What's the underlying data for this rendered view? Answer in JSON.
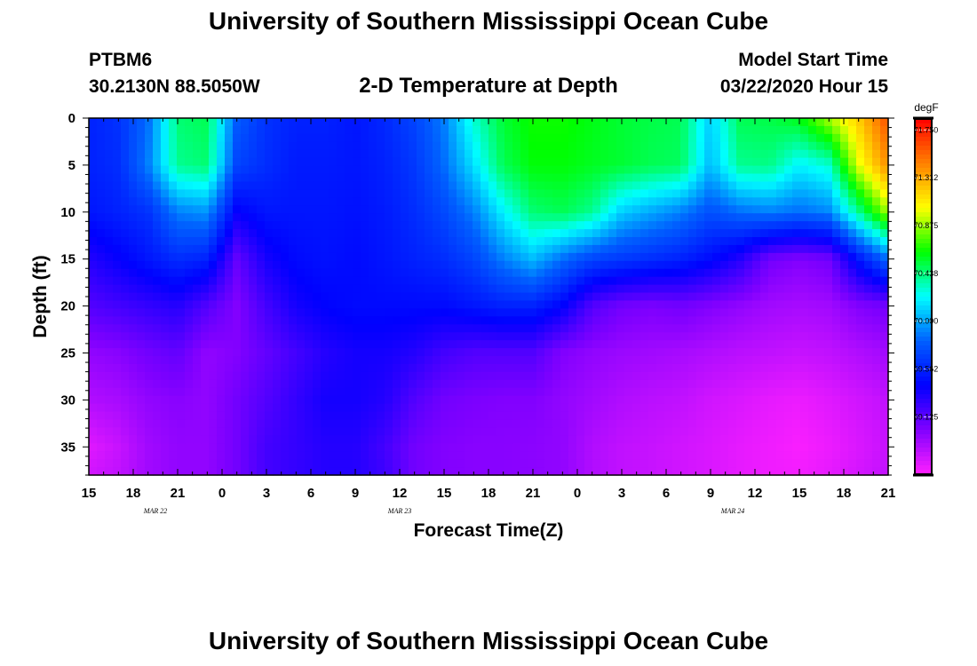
{
  "header": {
    "title": "University of Southern Mississippi Ocean Cube",
    "station_id": "PTBM6",
    "coordinates": "30.2130N 88.5050W",
    "chart_title": "2-D Temperature at Depth",
    "model_start_label": "Model Start Time",
    "model_start_value": "03/22/2020 Hour 15"
  },
  "footer": {
    "title": "University of Southern Mississippi Ocean Cube"
  },
  "chart_data": {
    "type": "heatmap",
    "title": "2-D Temperature at Depth",
    "xlabel": "Forecast Time(Z)",
    "ylabel": "Depth (ft)",
    "x_unit": "hours since 03/22/2020 15Z",
    "xlim": [
      0,
      54
    ],
    "ylim": [
      0,
      38
    ],
    "y_inverted": true,
    "x_ticks": [
      {
        "x": 0,
        "label": "15"
      },
      {
        "x": 3,
        "label": "18"
      },
      {
        "x": 6,
        "label": "21"
      },
      {
        "x": 9,
        "label": "0"
      },
      {
        "x": 12,
        "label": "3"
      },
      {
        "x": 15,
        "label": "6"
      },
      {
        "x": 18,
        "label": "9"
      },
      {
        "x": 21,
        "label": "12"
      },
      {
        "x": 24,
        "label": "15"
      },
      {
        "x": 27,
        "label": "18"
      },
      {
        "x": 30,
        "label": "21"
      },
      {
        "x": 33,
        "label": "0"
      },
      {
        "x": 36,
        "label": "3"
      },
      {
        "x": 39,
        "label": "6"
      },
      {
        "x": 42,
        "label": "9"
      },
      {
        "x": 45,
        "label": "12"
      },
      {
        "x": 48,
        "label": "15"
      },
      {
        "x": 51,
        "label": "18"
      },
      {
        "x": 54,
        "label": "21"
      }
    ],
    "date_labels": [
      {
        "x": 4.5,
        "label": "MAR 22"
      },
      {
        "x": 21,
        "label": "MAR 23"
      },
      {
        "x": 43.5,
        "label": "MAR 24"
      }
    ],
    "y_ticks": [
      0,
      5,
      10,
      15,
      20,
      25,
      30,
      35
    ],
    "depths": [
      0,
      5,
      10,
      15,
      20,
      25,
      30,
      35,
      38
    ],
    "times": [
      0,
      2,
      4,
      6,
      8,
      10,
      12,
      14,
      16,
      18,
      20,
      22,
      24,
      26,
      28,
      30,
      32,
      34,
      36,
      38,
      40,
      42,
      44,
      46,
      48,
      50,
      52,
      54
    ],
    "values": [
      [
        69.55,
        69.62,
        69.85,
        70.45,
        70.5,
        69.8,
        69.62,
        69.55,
        69.55,
        69.5,
        69.58,
        69.7,
        69.9,
        70.3,
        70.55,
        70.65,
        70.65,
        70.6,
        70.55,
        70.52,
        70.5,
        70.1,
        70.5,
        70.52,
        70.6,
        70.9,
        71.2,
        71.6
      ],
      [
        69.55,
        69.6,
        69.9,
        70.4,
        70.45,
        69.7,
        69.6,
        69.52,
        69.52,
        69.5,
        69.55,
        69.65,
        69.85,
        70.15,
        70.5,
        70.62,
        70.62,
        70.58,
        70.55,
        70.5,
        70.48,
        70.05,
        70.4,
        70.42,
        70.2,
        70.3,
        71.0,
        71.4
      ],
      [
        69.5,
        69.55,
        69.62,
        69.9,
        69.95,
        69.4,
        69.5,
        69.5,
        69.5,
        69.48,
        69.52,
        69.6,
        69.72,
        69.9,
        70.2,
        70.45,
        70.5,
        70.4,
        70.1,
        70.0,
        69.9,
        69.75,
        69.85,
        69.9,
        69.85,
        69.92,
        70.4,
        70.9
      ],
      [
        69.3,
        69.4,
        69.5,
        69.6,
        69.55,
        69.1,
        69.35,
        69.45,
        69.48,
        69.45,
        69.5,
        69.55,
        69.6,
        69.7,
        69.9,
        70.05,
        69.85,
        69.7,
        69.65,
        69.6,
        69.55,
        69.45,
        69.3,
        69.05,
        69.0,
        69.05,
        69.5,
        69.85
      ],
      [
        69.15,
        69.2,
        69.25,
        69.3,
        69.15,
        69.0,
        69.2,
        69.35,
        69.42,
        69.45,
        69.45,
        69.45,
        69.45,
        69.5,
        69.55,
        69.55,
        69.42,
        69.15,
        69.05,
        69.02,
        69.05,
        69.0,
        68.95,
        68.9,
        68.88,
        68.9,
        69.0,
        69.05
      ],
      [
        68.95,
        68.98,
        69.05,
        69.1,
        68.95,
        69.0,
        69.1,
        69.2,
        69.3,
        69.35,
        69.35,
        69.3,
        69.2,
        69.15,
        69.15,
        69.15,
        69.0,
        68.95,
        68.92,
        68.9,
        68.88,
        68.85,
        68.82,
        68.8,
        68.78,
        68.8,
        68.85,
        68.9
      ],
      [
        68.85,
        68.88,
        68.95,
        68.98,
        68.95,
        69.05,
        69.15,
        69.25,
        69.35,
        69.35,
        69.3,
        69.15,
        69.05,
        69.02,
        69.0,
        69.0,
        68.95,
        68.9,
        68.85,
        68.82,
        68.8,
        68.75,
        68.72,
        68.68,
        68.66,
        68.7,
        68.75,
        68.8
      ],
      [
        68.7,
        68.78,
        68.9,
        68.95,
        68.95,
        69.05,
        69.2,
        69.25,
        69.3,
        69.3,
        69.2,
        69.05,
        69.0,
        68.98,
        68.98,
        68.97,
        68.95,
        68.85,
        68.8,
        68.78,
        68.75,
        68.72,
        68.68,
        68.65,
        68.62,
        68.66,
        68.72,
        68.78
      ],
      [
        68.75,
        68.8,
        68.9,
        68.95,
        68.95,
        69.05,
        69.2,
        69.25,
        69.3,
        69.3,
        69.22,
        69.05,
        69.0,
        68.98,
        68.98,
        68.97,
        68.95,
        68.85,
        68.8,
        68.78,
        68.75,
        68.72,
        68.68,
        68.65,
        68.64,
        68.68,
        68.74,
        68.8
      ]
    ],
    "colorbar": {
      "unit": "degF",
      "min": 68.6,
      "max": 71.85,
      "ticks": [
        "71.750",
        "71.312",
        "70.875",
        "70.438",
        "70.000",
        "69.562",
        "69.125"
      ],
      "colors": [
        "#ff20ff",
        "#8000ff",
        "#0000ff",
        "#0060ff",
        "#00ffff",
        "#00ff00",
        "#ffff00",
        "#ff8000",
        "#ff0000"
      ]
    }
  }
}
